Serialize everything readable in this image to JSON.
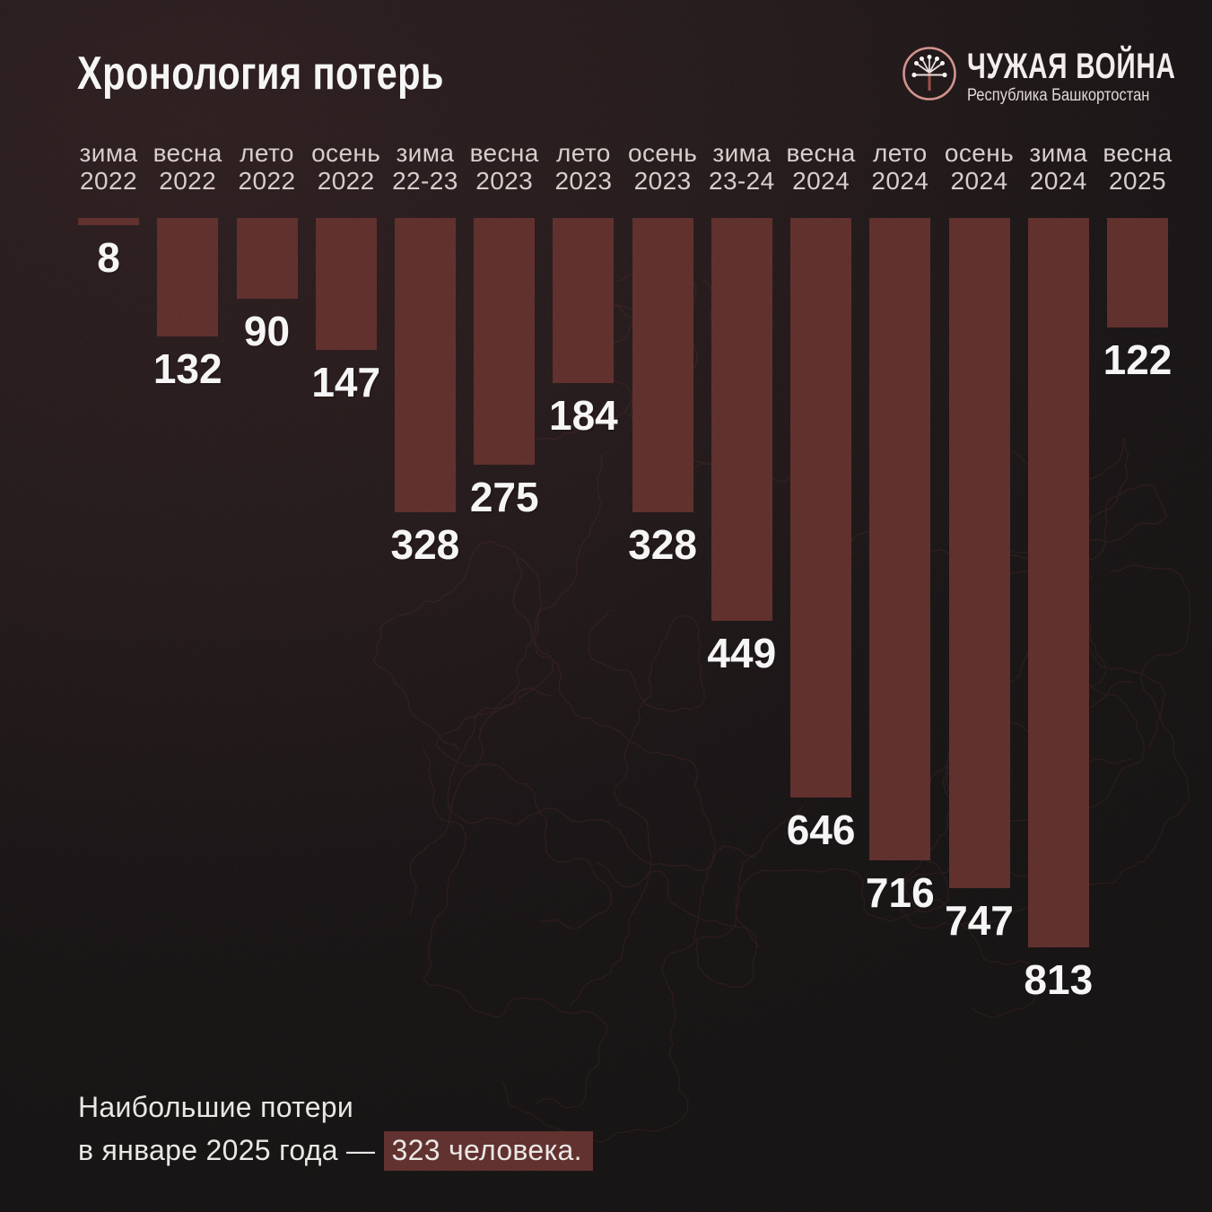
{
  "header": {
    "title": "Хронология потерь",
    "logo": {
      "name": "ЧУЖАЯ ВОЙНА",
      "subtitle": "Республика Башкортостан",
      "icon": "kurai-flower-icon"
    }
  },
  "chart_data": {
    "type": "bar",
    "title": "Хронология потерь",
    "orientation": "vertical-inverted-hanging-from-top",
    "categories": [
      "зима 2022",
      "весна 2022",
      "лето 2022",
      "осень 2022",
      "зима 22-23",
      "весна 2023",
      "лето 2023",
      "осень 2023",
      "зима 23-24",
      "весна 2024",
      "лето 2024",
      "осень 2024",
      "зима 2024",
      "весна 2025"
    ],
    "values": [
      8,
      132,
      90,
      147,
      328,
      275,
      184,
      328,
      449,
      646,
      716,
      747,
      813,
      122
    ],
    "value_labels_shown": true,
    "ylim": [
      0,
      850
    ],
    "grid": false,
    "legend": "none",
    "bar_color": "#5d2926",
    "annotation": "Наибольшие потери в январе 2025 года — 323 человека."
  },
  "columns": [
    {
      "season": "зима",
      "year": "2022",
      "value": 8
    },
    {
      "season": "весна",
      "year": "2022",
      "value": 132
    },
    {
      "season": "лето",
      "year": "2022",
      "value": 90
    },
    {
      "season": "осень",
      "year": "2022",
      "value": 147
    },
    {
      "season": "зима",
      "year": "22-23",
      "value": 328
    },
    {
      "season": "весна",
      "year": "2023",
      "value": 275
    },
    {
      "season": "лето",
      "year": "2023",
      "value": 184
    },
    {
      "season": "осень",
      "year": "2023",
      "value": 328
    },
    {
      "season": "зима",
      "year": "23-24",
      "value": 449
    },
    {
      "season": "весна",
      "year": "2024",
      "value": 646
    },
    {
      "season": "лето",
      "year": "2024",
      "value": 716
    },
    {
      "season": "осень",
      "year": "2024",
      "value": 747
    },
    {
      "season": "зима",
      "year": "2024",
      "value": 813
    },
    {
      "season": "весна",
      "year": "2025",
      "value": 122
    }
  ],
  "footer": {
    "line1": "Наибольшие потери",
    "line2_prefix": "в январе 2025 года — ",
    "line2_highlight": "323 человека."
  },
  "colors": {
    "bar": "#5d2926",
    "highlight_bg": "#5d2a28",
    "background_top": "#281719",
    "background_bottom": "#0d0a0a",
    "value_text": "#ffffff",
    "category_text": "#ddd5d2",
    "map_lines": "#8e3b36"
  }
}
